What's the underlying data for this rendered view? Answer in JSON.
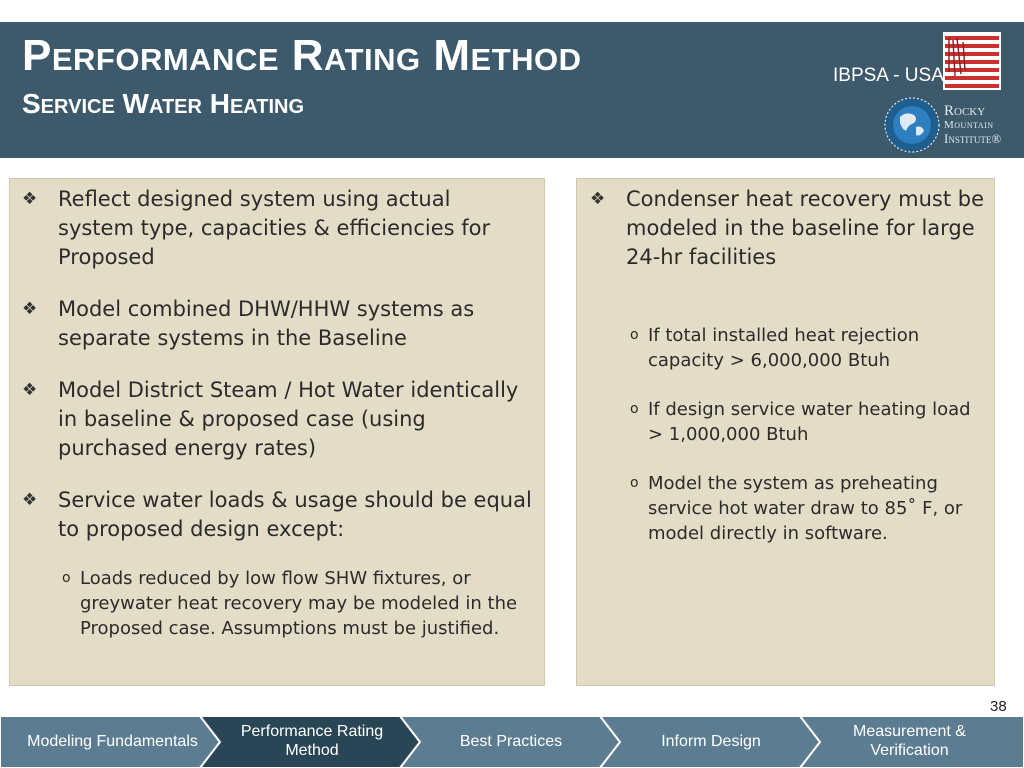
{
  "header": {
    "title": "Performance Rating Method",
    "subtitle": "Service Water Heating",
    "org_label": "IBPSA - USA",
    "rmi_logo": {
      "line1": "Rocky",
      "line2": "Mountain",
      "line3": "Institute®"
    }
  },
  "left_panel": {
    "bullets": [
      {
        "icon": "diamond-bullet-icon",
        "text": "Reflect designed system using actual system type, capacities & efficiencies for Proposed"
      },
      {
        "icon": "diamond-bullet-icon",
        "text": "Model combined DHW/HHW systems as separate systems in the Baseline"
      },
      {
        "icon": "diamond-bullet-icon",
        "text": "Model District Steam / Hot Water identically in baseline & proposed case (using purchased energy rates)"
      },
      {
        "icon": "diamond-bullet-icon",
        "text": "Service water loads & usage should be equal to proposed design except:"
      }
    ],
    "sub_bullets": [
      {
        "marker": "o",
        "text": "Loads reduced by low flow SHW fixtures, or greywater heat recovery may be modeled in the Proposed case. Assumptions must be justified."
      }
    ]
  },
  "right_panel": {
    "bullets": [
      {
        "icon": "diamond-bullet-icon",
        "text": "Condenser heat recovery must be modeled in the baseline for large 24-hr facilities"
      }
    ],
    "sub_bullets": [
      {
        "marker": "o",
        "text": "If total installed heat rejection capacity > 6,000,000 Btuh"
      },
      {
        "marker": "o",
        "text": "If design service water heating load > 1,000,000 Btuh"
      },
      {
        "marker": "o",
        "text": "Model the system as preheating service hot water draw to 85˚ F, or model directly in software."
      }
    ]
  },
  "page_number": "38",
  "nav": {
    "tabs": [
      {
        "label": "Modeling Fundamentals",
        "active": false
      },
      {
        "label": "Performance Rating Method",
        "active": true
      },
      {
        "label": "Best Practices",
        "active": false
      },
      {
        "label": "Inform Design",
        "active": false
      },
      {
        "label": "Measurement & Verification",
        "active": false
      }
    ],
    "colors": {
      "inactive": "#5b7c91",
      "active": "#294656",
      "separator": "#ffffff"
    }
  },
  "colors": {
    "header_bg": "#3d5a6c",
    "panel_bg": "#e3dcc6"
  }
}
